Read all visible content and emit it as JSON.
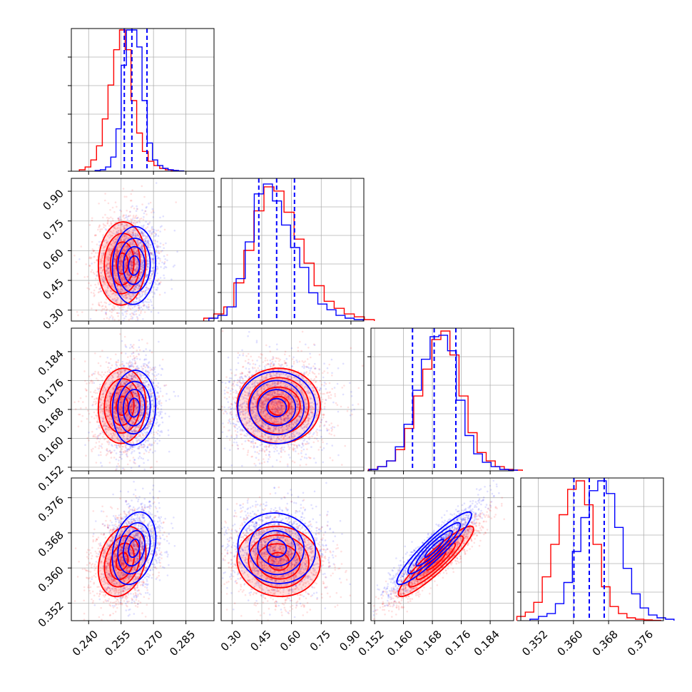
{
  "chart_data": {
    "type": "corner",
    "parameters": [
      {
        "name": "",
        "range": [
          0.232,
          0.298
        ],
        "ticks": [
          "0.240",
          "0.255",
          "0.270",
          "0.285"
        ],
        "tick_values": [
          0.24,
          0.255,
          0.27,
          0.285
        ]
      },
      {
        "name": "",
        "range": [
          0.245,
          0.965
        ],
        "ticks": [
          "0.30",
          "0.45",
          "0.60",
          "0.75",
          "0.90"
        ],
        "tick_values": [
          0.3,
          0.45,
          0.6,
          0.75,
          0.9
        ]
      },
      {
        "name": "",
        "range": [
          0.151,
          0.1905
        ],
        "ticks": [
          "0.152",
          "0.160",
          "0.168",
          "0.176",
          "0.184"
        ],
        "tick_values": [
          0.152,
          0.16,
          0.168,
          0.176,
          0.184
        ]
      },
      {
        "name": "",
        "range": [
          0.348,
          0.3805
        ],
        "ticks": [
          "0.352",
          "0.360",
          "0.368",
          "0.376"
        ],
        "tick_values": [
          0.352,
          0.36,
          0.368,
          0.376
        ]
      }
    ],
    "series": [
      {
        "color": "#ff0000",
        "means": [
          0.2555,
          0.535,
          0.169,
          0.3615
        ],
        "sigmas": [
          0.0055,
          0.105,
          0.0052,
          0.004
        ],
        "correlations": {
          "0-1": 0.05,
          "0-2": 0.05,
          "0-3": 0.25,
          "1-2": 0.0,
          "1-3": -0.05,
          "2-3": 0.92
        },
        "histograms": [
          [
            0.01,
            0.03,
            0.08,
            0.18,
            0.37,
            0.61,
            0.86,
            1.0,
            0.86,
            0.5,
            0.27,
            0.14,
            0.07,
            0.04,
            0.02,
            0.01,
            0.005
          ],
          [
            0.02,
            0.05,
            0.1,
            0.27,
            0.5,
            0.78,
            0.95,
            0.92,
            0.77,
            0.58,
            0.41,
            0.25,
            0.14,
            0.09,
            0.05,
            0.03,
            0.01
          ],
          [
            0.01,
            0.03,
            0.07,
            0.15,
            0.3,
            0.53,
            0.72,
            0.93,
            0.99,
            0.82,
            0.53,
            0.27,
            0.13,
            0.07,
            0.03,
            0.01,
            0.005
          ],
          [
            0.03,
            0.06,
            0.13,
            0.31,
            0.54,
            0.75,
            0.93,
            0.99,
            0.82,
            0.54,
            0.24,
            0.1,
            0.05,
            0.02,
            0.01,
            0.005,
            0.002
          ]
        ]
      },
      {
        "color": "#0000ff",
        "means": [
          0.261,
          0.525,
          0.1685,
          0.3645
        ],
        "sigmas": [
          0.005,
          0.095,
          0.005,
          0.004
        ],
        "correlations": {
          "0-1": 0.05,
          "0-2": 0.05,
          "0-3": 0.25,
          "1-2": 0.0,
          "1-3": -0.05,
          "2-3": 0.92
        },
        "histograms": [
          [
            0.005,
            0.01,
            0.03,
            0.1,
            0.3,
            0.75,
            1.0,
            1.0,
            0.88,
            0.5,
            0.2,
            0.08,
            0.04,
            0.02,
            0.01,
            0.005,
            0.002
          ],
          [
            0.02,
            0.04,
            0.1,
            0.3,
            0.56,
            0.9,
            0.97,
            0.85,
            0.68,
            0.52,
            0.38,
            0.2,
            0.12,
            0.08,
            0.04,
            0.02,
            0.01
          ],
          [
            0.01,
            0.03,
            0.07,
            0.17,
            0.33,
            0.57,
            0.79,
            0.95,
            0.96,
            0.85,
            0.5,
            0.25,
            0.12,
            0.06,
            0.03,
            0.01,
            0.005
          ],
          [
            0.01,
            0.03,
            0.05,
            0.12,
            0.27,
            0.49,
            0.73,
            0.92,
            0.99,
            0.9,
            0.66,
            0.37,
            0.19,
            0.09,
            0.04,
            0.02,
            0.01
          ]
        ],
        "quantiles": [
          [
            0.2565,
            0.26,
            0.267
          ],
          [
            0.435,
            0.525,
            0.615
          ],
          [
            0.1625,
            0.1685,
            0.1745
          ],
          [
            0.3601,
            0.3636,
            0.367
          ]
        ]
      }
    ],
    "quantile_line_color": "#0000ff",
    "grid": true
  }
}
